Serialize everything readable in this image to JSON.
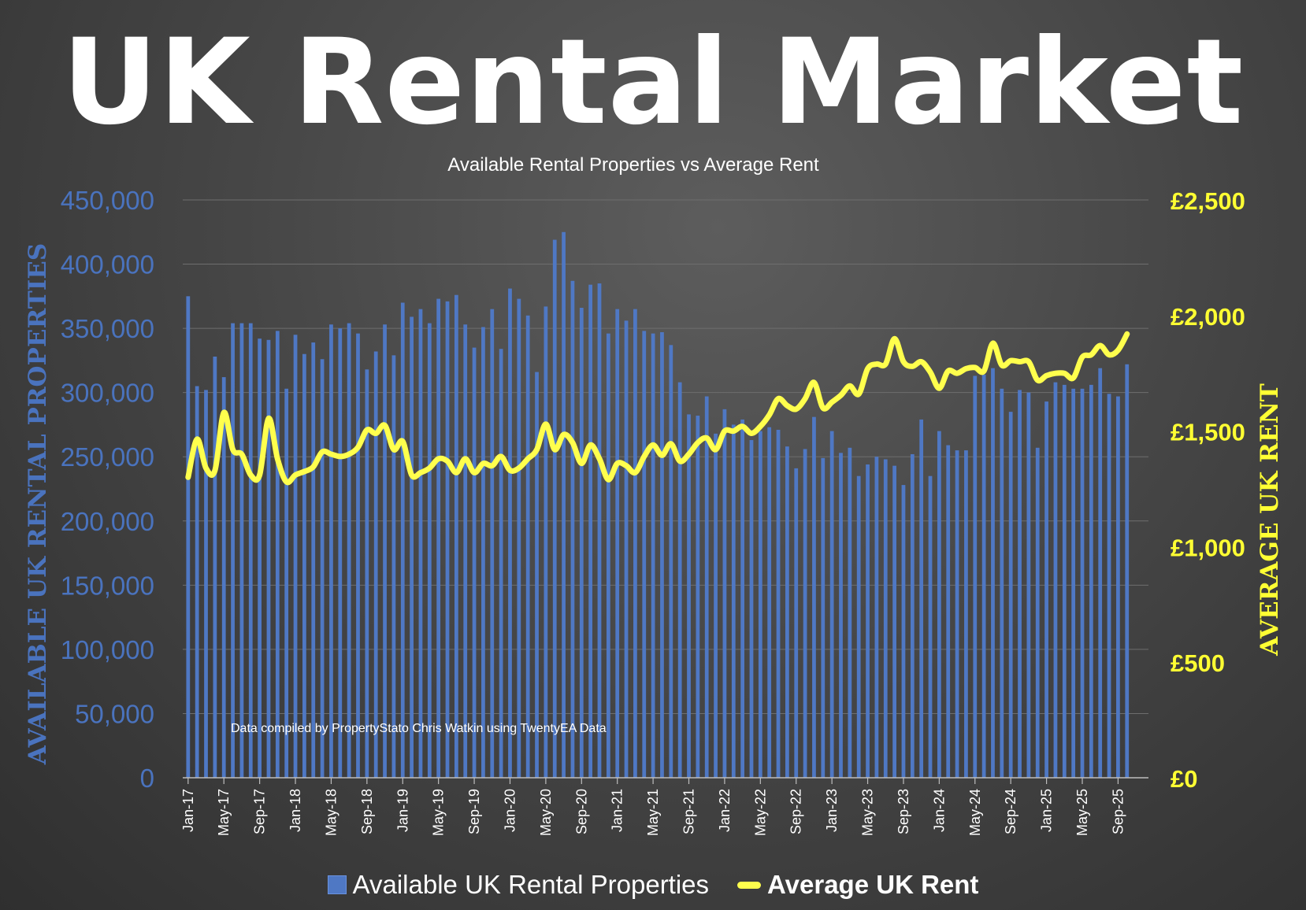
{
  "title": "UK Rental Market",
  "subtitle": "Available Rental Properties vs Average Rent",
  "legend": {
    "bars_label": "Available UK Rental Properties",
    "line_label": "Average UK Rent"
  },
  "annotation": "Data compiled by PropertyStato Chris Watkin using TwentyEA Data",
  "colors": {
    "bars": "#4f78c4",
    "line": "#ffff4d",
    "left_axis": "#4a73be",
    "right_axis": "#ffff33"
  },
  "chart_data": {
    "type": "bar",
    "title": "Available Rental Properties vs Average Rent",
    "ylabel": "AVAILABLE UK RENTAL PROPERTIES",
    "y2label": "AVERAGE UK RENT",
    "ylim": [
      0,
      450000
    ],
    "y2lim": [
      0,
      2500
    ],
    "grid": true,
    "legend_position": "bottom",
    "y_ticks": [
      "0",
      "50,000",
      "100,000",
      "150,000",
      "200,000",
      "250,000",
      "300,000",
      "350,000",
      "400,000",
      "450,000"
    ],
    "y2_ticks": [
      "£0",
      "£500",
      "£1,000",
      "£1,500",
      "£2,000",
      "£2,500"
    ],
    "x_tick_labels": [
      "Jan-17",
      "May-17",
      "Sep-17",
      "Jan-18",
      "May-18",
      "Sep-18",
      "Jan-19",
      "May-19",
      "Sep-19",
      "Jan-20",
      "May-20",
      "Sep-20",
      "Jan-21",
      "May-21",
      "Sep-21",
      "Jan-22",
      "May-22",
      "Sep-22",
      "Jan-23",
      "May-23",
      "Sep-23",
      "Jan-24",
      "May-24",
      "Sep-24",
      "Jan-25",
      "May-25",
      "Sep-25"
    ],
    "x_start": "Jan-17",
    "series": [
      {
        "name": "Available UK Rental Properties",
        "type": "bar",
        "axis": "left",
        "values": [
          375000,
          305000,
          302000,
          328000,
          312000,
          354000,
          354000,
          354000,
          342000,
          341000,
          348000,
          303000,
          345000,
          330000,
          339000,
          326000,
          353000,
          350000,
          354000,
          346000,
          318000,
          332000,
          353000,
          329000,
          370000,
          359000,
          365000,
          354000,
          373000,
          371000,
          376000,
          353000,
          335000,
          351000,
          365000,
          334000,
          381000,
          373000,
          360000,
          316000,
          367000,
          419000,
          425000,
          387000,
          366000,
          384000,
          385000,
          346000,
          365000,
          356000,
          365000,
          348000,
          346000,
          347000,
          337000,
          308000,
          283000,
          282000,
          297000,
          268000,
          287000,
          275000,
          279000,
          263000,
          270000,
          273000,
          271000,
          258000,
          241000,
          256000,
          281000,
          249000,
          270000,
          253000,
          257000,
          235000,
          244000,
          250000,
          248000,
          243000,
          228000,
          252000,
          279000,
          235000,
          270000,
          259000,
          255000,
          255000,
          313000,
          314000,
          319000,
          303000,
          285000,
          302000,
          300000,
          257000,
          293000,
          308000,
          306000,
          303000,
          303000,
          306000,
          319000,
          299000,
          297000,
          322000
        ]
      },
      {
        "name": "Average UK Rent",
        "type": "line",
        "axis": "right",
        "values": [
          1300,
          1465,
          1340,
          1330,
          1580,
          1420,
          1400,
          1310,
          1310,
          1555,
          1380,
          1280,
          1310,
          1325,
          1345,
          1410,
          1400,
          1390,
          1400,
          1430,
          1505,
          1490,
          1525,
          1420,
          1455,
          1310,
          1320,
          1340,
          1380,
          1370,
          1320,
          1380,
          1320,
          1360,
          1350,
          1390,
          1330,
          1340,
          1380,
          1420,
          1530,
          1420,
          1485,
          1450,
          1360,
          1440,
          1380,
          1290,
          1360,
          1350,
          1320,
          1390,
          1440,
          1395,
          1445,
          1370,
          1400,
          1450,
          1470,
          1420,
          1500,
          1500,
          1520,
          1490,
          1520,
          1570,
          1640,
          1610,
          1595,
          1640,
          1710,
          1600,
          1625,
          1655,
          1695,
          1660,
          1770,
          1790,
          1790,
          1900,
          1800,
          1780,
          1800,
          1755,
          1685,
          1760,
          1750,
          1770,
          1775,
          1760,
          1880,
          1785,
          1805,
          1800,
          1800,
          1720,
          1740,
          1750,
          1750,
          1730,
          1820,
          1830,
          1870,
          1830,
          1850,
          1920
        ]
      }
    ]
  }
}
